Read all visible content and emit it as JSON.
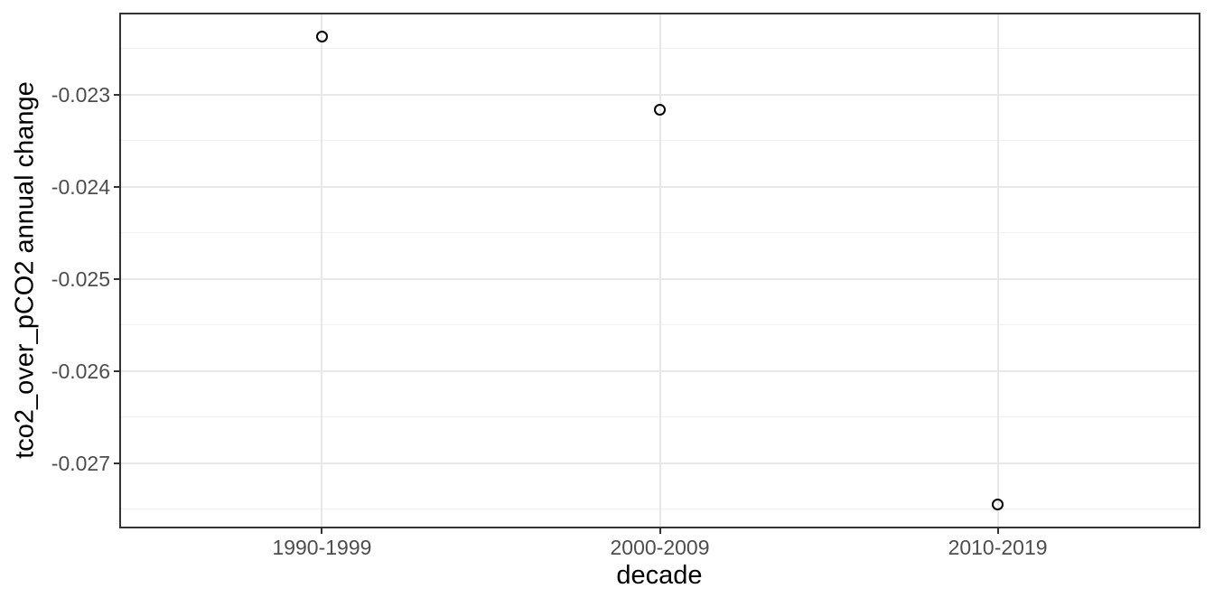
{
  "chart_data": {
    "type": "scatter",
    "title": "",
    "xlabel": "decade",
    "ylabel": "tco2_over_pCO2 annual change",
    "categories": [
      "1990-1999",
      "2000-2009",
      "2010-2019"
    ],
    "values": [
      -0.02237,
      -0.02316,
      -0.02745
    ],
    "y_ticks": [
      -0.023,
      -0.024,
      -0.025,
      -0.026,
      -0.027
    ],
    "y_tick_labels": [
      "-0.023",
      "-0.024",
      "-0.025",
      "-0.026",
      "-0.027"
    ],
    "y_minor_ticks": [
      -0.0225,
      -0.0235,
      -0.0245,
      -0.0255,
      -0.0265,
      -0.0275
    ],
    "ylim_top": -0.02211,
    "ylim_bottom": -0.02771,
    "grid": true,
    "legend": "none",
    "x_expand_lo": 0.6,
    "x_expand_step": 1,
    "style": {
      "background": "#FFFFFF",
      "panel_border": "#333333",
      "grid_major": "#E8E8E8",
      "grid_minor": "#F2F2F2",
      "axis_tick_color": "#333333",
      "tick_label_color": "#4D4D4D",
      "axis_title_color": "#000000",
      "point_stroke": "#000000"
    }
  }
}
